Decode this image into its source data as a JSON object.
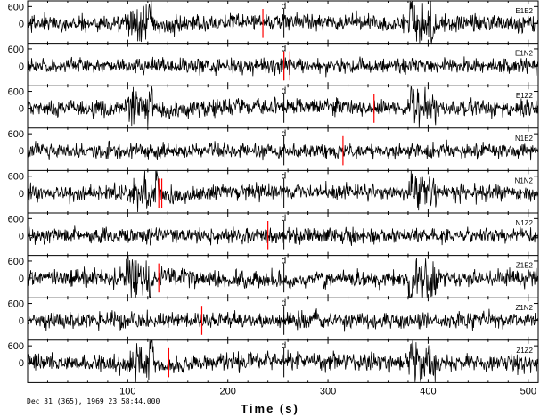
{
  "chart_data": {
    "type": "line",
    "xlabel": "Time (s)",
    "footer": "Dec 31 (365), 1969 23:58:44.000",
    "xlim": [
      0,
      510
    ],
    "xticks": [
      100,
      200,
      300,
      400,
      500
    ],
    "xtick_labels": [
      "100",
      "200",
      "300",
      "400",
      "500"
    ],
    "marker_label": "d",
    "marker_time": 256,
    "colors": {
      "trace": "#000000",
      "pick": "#ff0000",
      "marker": "#000000"
    },
    "panels": [
      {
        "name": "E1E2",
        "ytick_labels": [
          "600",
          "0"
        ],
        "yticks": [
          600,
          0
        ],
        "ylim": [
          -700,
          800
        ],
        "picks": [
          235
        ],
        "sig": {
          "type": "transient",
          "amp": 1,
          "t1": 123,
          "t2": 383
        }
      },
      {
        "name": "E1N2",
        "ytick_labels": [
          "600",
          "0"
        ],
        "yticks": [
          600,
          0
        ],
        "ylim": [
          -700,
          800
        ],
        "picks": [
          256,
          262
        ],
        "sig": {
          "type": "noise",
          "amp": 0.9
        }
      },
      {
        "name": "E1Z2",
        "ytick_labels": [
          "600",
          "0"
        ],
        "yticks": [
          600,
          0
        ],
        "ylim": [
          -700,
          800
        ],
        "picks": [
          346
        ],
        "sig": {
          "type": "transient",
          "amp": 1,
          "t1": 123,
          "t2": 383
        }
      },
      {
        "name": "N1E2",
        "ytick_labels": [
          "600",
          "0"
        ],
        "yticks": [
          600,
          0
        ],
        "ylim": [
          -700,
          800
        ],
        "picks": [
          315
        ],
        "sig": {
          "type": "noise",
          "amp": 0.9
        }
      },
      {
        "name": "N1N2",
        "ytick_labels": [
          "600",
          "0"
        ],
        "yticks": [
          600,
          0
        ],
        "ylim": [
          -700,
          800
        ],
        "picks": [
          131,
          134
        ],
        "sig": {
          "type": "transient",
          "amp": 0.95,
          "t1": 130,
          "t2": 383
        }
      },
      {
        "name": "N1Z2",
        "ytick_labels": [
          "600",
          "0"
        ],
        "yticks": [
          600,
          0
        ],
        "ylim": [
          -700,
          800
        ],
        "picks": [
          240
        ],
        "sig": {
          "type": "noise",
          "amp": 0.9
        }
      },
      {
        "name": "Z1E2",
        "ytick_labels": [
          "600",
          "0"
        ],
        "yticks": [
          600,
          0
        ],
        "ylim": [
          -700,
          800
        ],
        "picks": [
          131
        ],
        "sig": {
          "type": "transient_inv",
          "amp": 1,
          "t1": 123,
          "t2": 383
        }
      },
      {
        "name": "Z1N2",
        "ytick_labels": [
          "600",
          "0"
        ],
        "yticks": [
          600,
          0
        ],
        "ylim": [
          -700,
          800
        ],
        "picks": [
          174
        ],
        "sig": {
          "type": "noise",
          "amp": 0.9
        }
      },
      {
        "name": "Z1Z2",
        "ytick_labels": [
          "600",
          "0"
        ],
        "yticks": [
          600,
          0
        ],
        "ylim": [
          -700,
          800
        ],
        "picks": [
          141
        ],
        "sig": {
          "type": "transient",
          "amp": 1,
          "t1": 123,
          "t2": 383
        }
      }
    ]
  }
}
